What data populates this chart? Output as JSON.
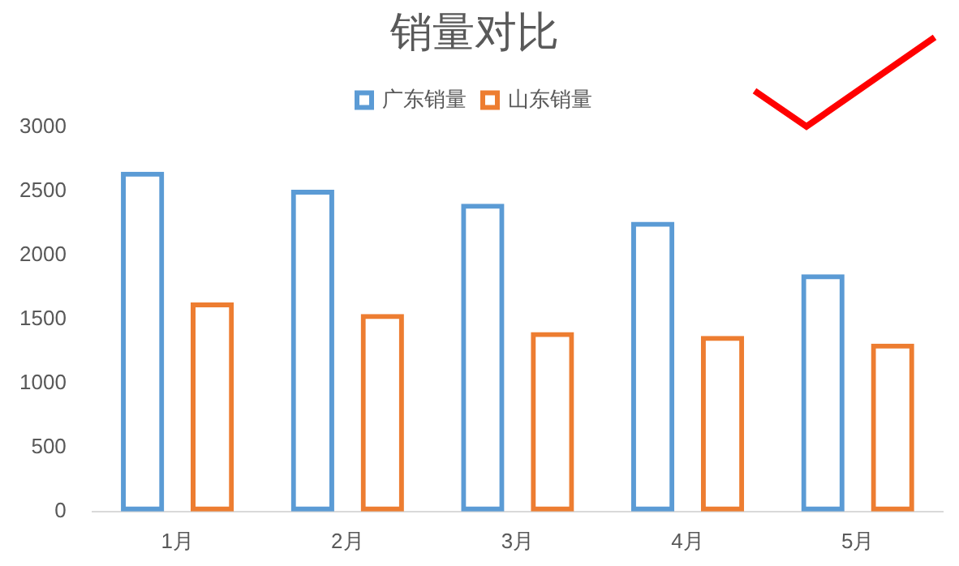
{
  "chart_data": {
    "type": "bar",
    "title": "销量对比",
    "categories": [
      "1月",
      "2月",
      "3月",
      "4月",
      "5月"
    ],
    "series": [
      {
        "name": "广东销量",
        "color": "#5b9bd5",
        "values": [
          2650,
          2510,
          2400,
          2260,
          1850
        ]
      },
      {
        "name": "山东销量",
        "color": "#ed7d31",
        "values": [
          1630,
          1540,
          1400,
          1370,
          1310
        ]
      }
    ],
    "ylim": [
      0,
      3000
    ],
    "yticks": [
      0,
      500,
      1000,
      1500,
      2000,
      2500,
      3000
    ],
    "grid": false,
    "legend": "top"
  }
}
